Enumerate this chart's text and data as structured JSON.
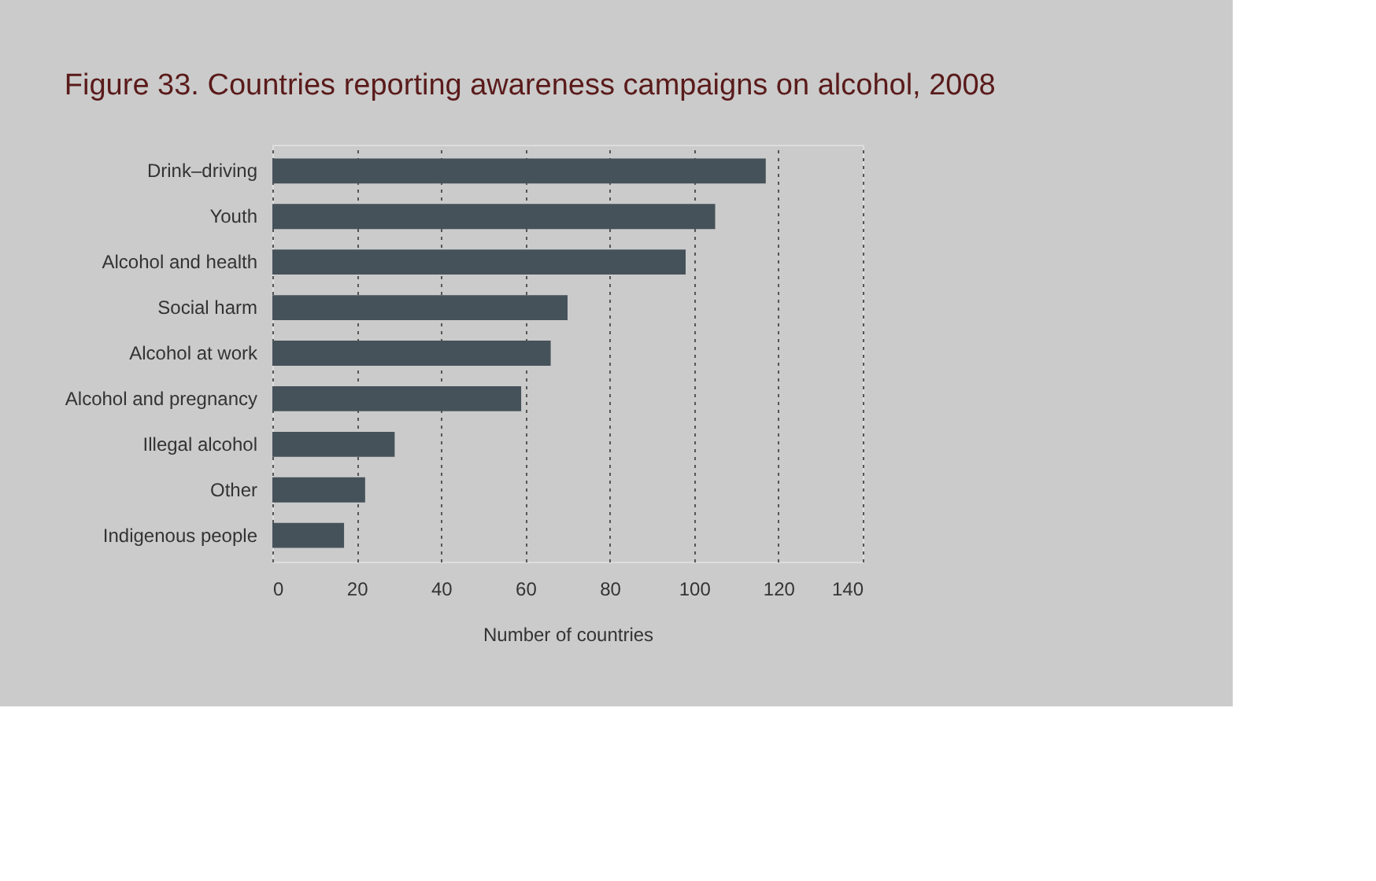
{
  "chart_data": {
    "type": "bar",
    "orientation": "horizontal",
    "title": "Figure 33. Countries reporting awareness campaigns on alcohol, 2008",
    "xlabel": "Number of countries",
    "categories": [
      "Drink–driving",
      "Youth",
      "Alcohol and health",
      "Social harm",
      "Alcohol at work",
      "Alcohol and pregnancy",
      "Illegal alcohol",
      "Other",
      "Indigenous people"
    ],
    "values": [
      117,
      105,
      98,
      70,
      66,
      59,
      29,
      22,
      17
    ],
    "color": "#46525a",
    "xlim": [
      0,
      140
    ],
    "xticks": [
      0,
      20,
      40,
      60,
      80,
      100,
      120,
      140
    ],
    "grid": "x"
  }
}
